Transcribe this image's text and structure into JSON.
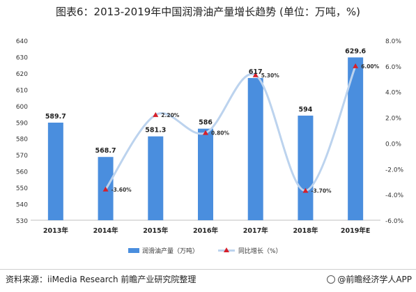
{
  "title": "图表6：2013-2019年中国润滑油产量增长趋势 (单位：万吨，%)",
  "chart_data": {
    "type": "bar",
    "categories": [
      "2013年",
      "2014年",
      "2015年",
      "2016年",
      "2017年",
      "2018年",
      "2019年E"
    ],
    "series": [
      {
        "name": "润滑油产量（万吨）",
        "type": "bar",
        "axis": "left",
        "values": [
          589.7,
          568.7,
          581.3,
          586,
          617,
          594,
          629.6
        ],
        "labels": [
          "589.7",
          "568.7",
          "581.3",
          "586",
          "617",
          "594",
          "629.6"
        ],
        "color": "#4a8ede"
      },
      {
        "name": "同比增长（%）",
        "type": "line",
        "axis": "right",
        "values": [
          null,
          -3.6,
          2.2,
          0.8,
          5.3,
          -3.7,
          6.0
        ],
        "labels": [
          "",
          "-3.60%",
          "2.20%",
          "0.80%",
          "5.30%",
          "-3.70%",
          "6.00%"
        ],
        "color": "#bcd3ee",
        "marker_color": "#d6202a"
      }
    ],
    "y_left": {
      "ylim": [
        530,
        640
      ],
      "ticks": [
        "530",
        "540",
        "550",
        "560",
        "570",
        "580",
        "590",
        "600",
        "610",
        "620",
        "630",
        "640"
      ]
    },
    "y_right": {
      "ylim": [
        -6,
        8
      ],
      "ticks": [
        "-6.0%",
        "-4.0%",
        "-2.0%",
        "0.0%",
        "2.0%",
        "4.0%",
        "6.0%",
        "8.0%"
      ]
    },
    "grid": false,
    "legend_position": "bottom-center"
  },
  "source": "资料来源：iiMedia Research 前瞻产业研究院整理",
  "brand": "@前瞻经济学人APP"
}
